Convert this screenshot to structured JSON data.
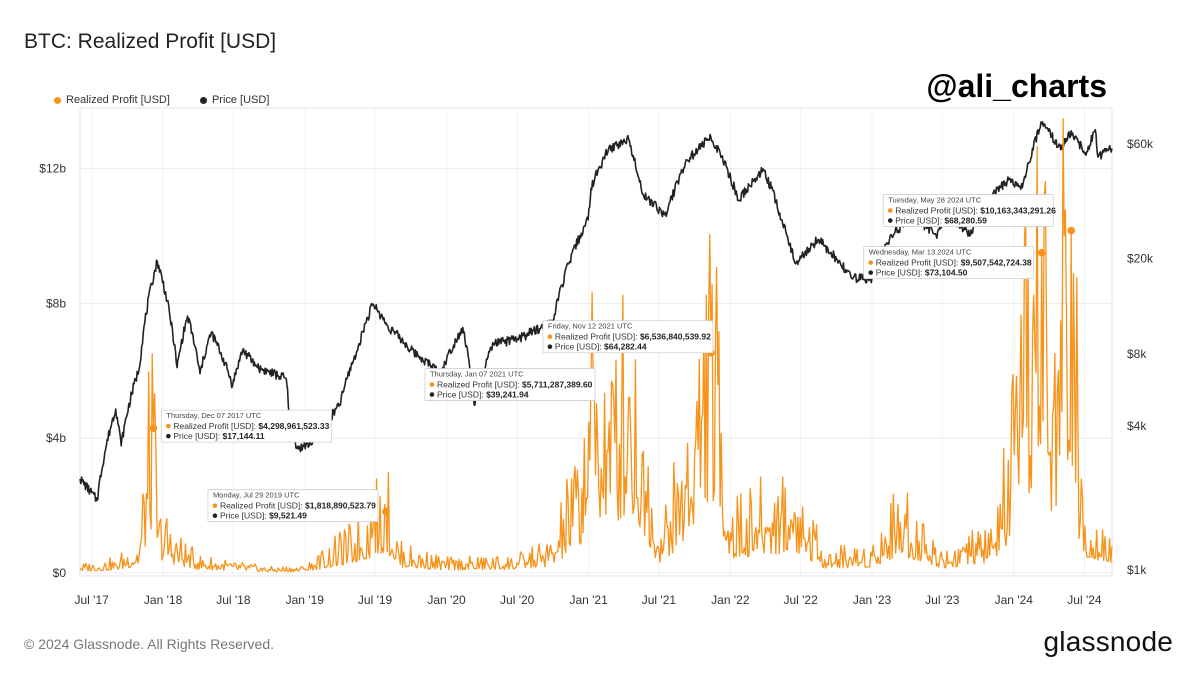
{
  "header": {
    "title": "BTC: Realized Profit [USD]",
    "handle": "@ali_charts"
  },
  "legend": [
    {
      "label": "Realized Profit [USD]",
      "color": "#f7931a"
    },
    {
      "label": "Price [USD]",
      "color": "#222222"
    }
  ],
  "footer": {
    "copyright": "© 2024 Glassnode. All Rights Reserved.",
    "brand": "glassnode"
  },
  "chart_data": {
    "type": "line",
    "title": "BTC: Realized Profit [USD]",
    "x_start": "2017-06-01",
    "x_end": "2024-09-10",
    "x_ticks": [
      {
        "date": "2017-07-01",
        "label": "Jul '17"
      },
      {
        "date": "2018-01-01",
        "label": "Jan '18"
      },
      {
        "date": "2018-07-01",
        "label": "Jul '18"
      },
      {
        "date": "2019-01-01",
        "label": "Jan '19"
      },
      {
        "date": "2019-07-01",
        "label": "Jul '19"
      },
      {
        "date": "2020-01-01",
        "label": "Jan '20"
      },
      {
        "date": "2020-07-01",
        "label": "Jul '20"
      },
      {
        "date": "2021-01-01",
        "label": "Jan '21"
      },
      {
        "date": "2021-07-01",
        "label": "Jul '21"
      },
      {
        "date": "2022-01-01",
        "label": "Jan '22"
      },
      {
        "date": "2022-07-01",
        "label": "Jul '22"
      },
      {
        "date": "2023-01-01",
        "label": "Jan '23"
      },
      {
        "date": "2023-07-01",
        "label": "Jul '23"
      },
      {
        "date": "2024-01-01",
        "label": "Jan '24"
      },
      {
        "date": "2024-07-01",
        "label": "Jul '24"
      }
    ],
    "y_left": {
      "label": "Realized Profit [USD]",
      "range": [
        0,
        13800000000
      ],
      "ticks": [
        {
          "value": 0,
          "label": "$0"
        },
        {
          "value": 4000000000,
          "label": "$4b"
        },
        {
          "value": 8000000000,
          "label": "$8b"
        },
        {
          "value": 12000000000,
          "label": "$12b"
        }
      ]
    },
    "y_right": {
      "label": "Price [USD]",
      "scale": "log",
      "range": [
        1000,
        85000
      ],
      "ticks": [
        {
          "value": 1000,
          "label": "$1k"
        },
        {
          "value": 4000,
          "label": "$4k"
        },
        {
          "value": 8000,
          "label": "$8k"
        },
        {
          "value": 20000,
          "label": "$20k"
        },
        {
          "value": 60000,
          "label": "$60k"
        }
      ]
    },
    "grid": true,
    "legend_position": "top-left",
    "series": [
      {
        "name": "Realized Profit [USD]",
        "color": "#f7931a",
        "axis": "left",
        "points": [
          [
            "2017-06-01",
            150000000.0
          ],
          [
            "2017-09-01",
            250000000.0
          ],
          [
            "2017-11-01",
            600000000.0
          ],
          [
            "2017-12-07",
            4300000000.0
          ],
          [
            "2017-12-20",
            1200000000.0
          ],
          [
            "2018-02-01",
            700000000.0
          ],
          [
            "2018-04-01",
            300000000.0
          ],
          [
            "2018-07-01",
            200000000.0
          ],
          [
            "2018-10-01",
            100000000.0
          ],
          [
            "2019-01-01",
            120000000.0
          ],
          [
            "2019-05-01",
            800000000.0
          ],
          [
            "2019-06-26",
            1350000000.0
          ],
          [
            "2019-07-29",
            1820000000.0
          ],
          [
            "2019-09-01",
            500000000.0
          ],
          [
            "2020-01-01",
            250000000.0
          ],
          [
            "2020-07-01",
            300000000.0
          ],
          [
            "2020-10-01",
            600000000.0
          ],
          [
            "2020-12-15",
            2500000000.0
          ],
          [
            "2021-01-07",
            5710000000.0
          ],
          [
            "2021-02-20",
            3600000000.0
          ],
          [
            "2021-04-14",
            5200000000.0
          ],
          [
            "2021-05-19",
            3500000000.0
          ],
          [
            "2021-07-01",
            700000000.0
          ],
          [
            "2021-09-07",
            2600000000.0
          ],
          [
            "2021-11-12",
            6540000000.0
          ],
          [
            "2022-01-01",
            1200000000.0
          ],
          [
            "2022-06-15",
            1800000000.0
          ],
          [
            "2022-09-01",
            400000000.0
          ],
          [
            "2023-01-01",
            500000000.0
          ],
          [
            "2023-03-15",
            1500000000.0
          ],
          [
            "2023-07-01",
            400000000.0
          ],
          [
            "2023-11-15",
            900000000.0
          ],
          [
            "2024-01-11",
            3700000000.0
          ],
          [
            "2024-03-13",
            9510000000.0
          ],
          [
            "2024-04-01",
            3500000000.0
          ],
          [
            "2024-05-28",
            10160000000.0
          ],
          [
            "2024-06-20",
            1500000000.0
          ],
          [
            "2024-09-10",
            800000000.0
          ]
        ]
      },
      {
        "name": "Price [USD]",
        "color": "#222222",
        "axis": "right",
        "points": [
          [
            "2017-06-01",
            2400
          ],
          [
            "2017-07-15",
            1950
          ],
          [
            "2017-09-01",
            4700
          ],
          [
            "2017-09-15",
            3300
          ],
          [
            "2017-11-01",
            7000
          ],
          [
            "2017-12-17",
            19500
          ],
          [
            "2018-02-06",
            7000
          ],
          [
            "2018-03-05",
            11500
          ],
          [
            "2018-04-06",
            6600
          ],
          [
            "2018-05-05",
            9800
          ],
          [
            "2018-06-29",
            5900
          ],
          [
            "2018-07-25",
            8300
          ],
          [
            "2018-09-01",
            7000
          ],
          [
            "2018-11-14",
            6300
          ],
          [
            "2018-11-25",
            3800
          ],
          [
            "2018-12-15",
            3200
          ],
          [
            "2019-02-01",
            3500
          ],
          [
            "2019-04-01",
            4900
          ],
          [
            "2019-05-15",
            8200
          ],
          [
            "2019-06-26",
            12900
          ],
          [
            "2019-08-01",
            10500
          ],
          [
            "2019-10-01",
            8300
          ],
          [
            "2019-12-17",
            6600
          ],
          [
            "2020-02-12",
            10300
          ],
          [
            "2020-03-12",
            4900
          ],
          [
            "2020-05-01",
            8800
          ],
          [
            "2020-07-01",
            9200
          ],
          [
            "2020-10-01",
            10800
          ],
          [
            "2020-12-31",
            29000
          ],
          [
            "2021-01-07",
            39241.94
          ],
          [
            "2021-02-21",
            57000
          ],
          [
            "2021-04-14",
            63000
          ],
          [
            "2021-05-20",
            37000
          ],
          [
            "2021-07-20",
            30000
          ],
          [
            "2021-09-07",
            50000
          ],
          [
            "2021-11-12",
            64282.44
          ],
          [
            "2022-01-22",
            35000
          ],
          [
            "2022-03-28",
            47000
          ],
          [
            "2022-05-12",
            29000
          ],
          [
            "2022-06-18",
            19000
          ],
          [
            "2022-08-15",
            24000
          ],
          [
            "2022-11-10",
            16500
          ],
          [
            "2023-01-01",
            16600
          ],
          [
            "2023-02-15",
            24000
          ],
          [
            "2023-04-14",
            30400
          ],
          [
            "2023-06-15",
            25000
          ],
          [
            "2023-07-14",
            31000
          ],
          [
            "2023-09-11",
            25000
          ],
          [
            "2023-10-25",
            34500
          ],
          [
            "2023-12-15",
            42000
          ],
          [
            "2024-01-23",
            39500
          ],
          [
            "2024-03-13",
            73104.5
          ],
          [
            "2024-05-01",
            57000
          ],
          [
            "2024-05-28",
            68280.59
          ],
          [
            "2024-07-05",
            54000
          ],
          [
            "2024-07-29",
            69000
          ],
          [
            "2024-08-05",
            53000
          ],
          [
            "2024-09-10",
            57500
          ]
        ]
      }
    ],
    "annotations": [
      {
        "date_label": "Thursday, Dec 07 2017 UTC",
        "date": "2017-12-07",
        "profit": "$4,298,961,523.33",
        "price": "$17,144.11"
      },
      {
        "date_label": "Monday, Jul 29 2019 UTC",
        "date": "2019-07-29",
        "profit": "$1,818,890,523.79",
        "price": "$9,521.49"
      },
      {
        "date_label": "Thursday, Jan 07 2021 UTC",
        "date": "2021-01-07",
        "profit": "$5,711,287,389.60",
        "price": "$39,241.94"
      },
      {
        "date_label": "Friday, Nov 12 2021 UTC",
        "date": "2021-11-12",
        "profit": "$6,536,840,539.92",
        "price": "$64,282.44"
      },
      {
        "date_label": "Wednesday, Mar 13 2024 UTC",
        "date": "2024-03-13",
        "profit": "$9,507,542,724.38",
        "price": "$73,104.50"
      },
      {
        "date_label": "Tuesday, May 28 2024 UTC",
        "date": "2024-05-28",
        "profit": "$10,163,343,291.26",
        "price": "$68,280.59"
      }
    ],
    "tooltip_labels": {
      "profit": "Realized Profit [USD]:",
      "price": "Price [USD]:"
    }
  }
}
